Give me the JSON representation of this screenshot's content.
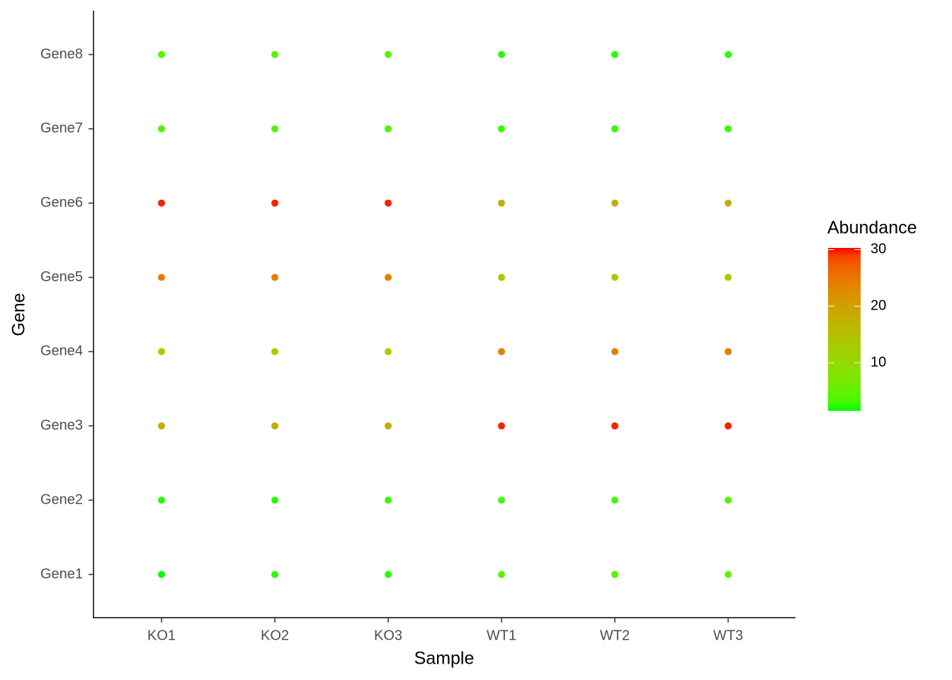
{
  "chart_data": {
    "type": "dotplot",
    "x_label": "Sample",
    "y_label": "Gene",
    "legend_title": "Abundance",
    "categories": [
      "KO1",
      "KO2",
      "KO3",
      "WT1",
      "WT2",
      "WT3"
    ],
    "y_categories": [
      "Gene1",
      "Gene2",
      "Gene3",
      "Gene4",
      "Gene5",
      "Gene6",
      "Gene7",
      "Gene8"
    ],
    "values": [
      [
        1.5,
        2,
        2,
        4,
        4.5,
        5
      ],
      [
        2,
        2,
        2.5,
        3,
        3,
        4
      ],
      [
        18,
        18,
        18,
        30,
        30,
        30
      ],
      [
        12,
        12,
        12,
        24,
        24,
        24
      ],
      [
        24,
        24,
        24,
        13,
        13,
        13
      ],
      [
        30,
        30,
        30,
        18,
        18,
        18
      ],
      [
        3.5,
        3.5,
        3.5,
        2.5,
        2.5,
        2.5
      ],
      [
        4,
        4,
        4,
        2,
        2,
        2
      ]
    ],
    "low_color": "#00FF00",
    "high_color": "#FF0000",
    "colorlim": [
      1.5,
      30.3
    ],
    "colorticks": [
      10,
      20,
      30
    ]
  }
}
